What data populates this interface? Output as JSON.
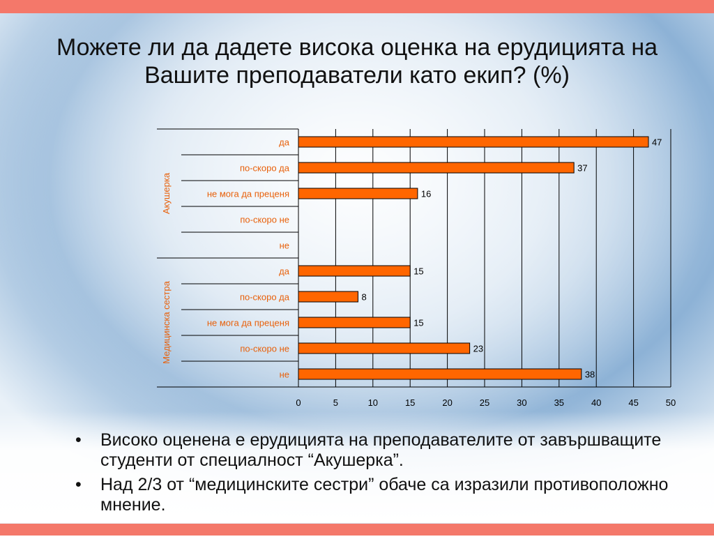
{
  "slide": {
    "title": "Можете ли да дадете висока оценка на ерудицията на Вашите преподаватели като екип? (%)",
    "bullets": [
      "Високо оценена е ерудицията на преподавателите от завършващите студенти от специалност “Акушерка”.",
      "Над 2/3 от “медицинските сестри” обаче са изразили противоположно мнение."
    ],
    "bullet_symbol": "•",
    "colors": {
      "accent": "#f4786a",
      "bar": "#ff6600",
      "label": "#e8600a"
    }
  },
  "chart_data": {
    "type": "bar",
    "orientation": "horizontal",
    "groups": [
      {
        "name": "Акушерка",
        "categories": [
          "да",
          "по-скоро да",
          "не мога да преценя",
          "по-скоро не",
          "не"
        ],
        "values": [
          47,
          37,
          16,
          null,
          null
        ]
      },
      {
        "name": "Медицинска сестра",
        "categories": [
          "да",
          "по-скоро да",
          "не мога да преценя",
          "по-скоро не",
          "не"
        ],
        "values": [
          15,
          8,
          15,
          23,
          38
        ]
      }
    ],
    "xlim": [
      0,
      50
    ],
    "xticks": [
      0,
      5,
      10,
      15,
      20,
      25,
      30,
      35,
      40,
      45,
      50
    ],
    "grid": true,
    "data_labels": true
  }
}
